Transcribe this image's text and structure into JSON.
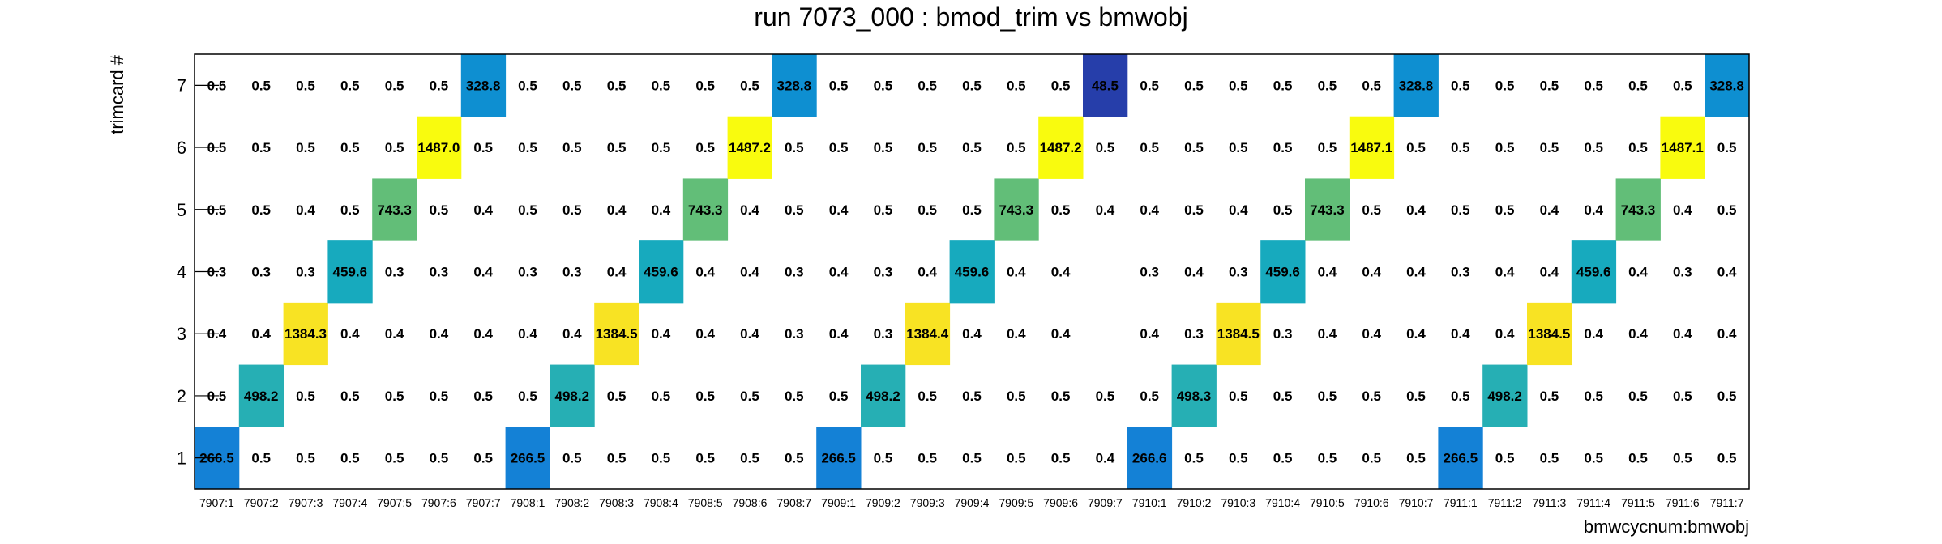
{
  "chart_data": {
    "type": "heatmap",
    "title": "run 7073_000 : bmod_trim vs bmwobj",
    "xlabel": "bmwcycnum:bmwobj",
    "ylabel": "trimcard #",
    "y_categories": [
      "1",
      "2",
      "3",
      "4",
      "5",
      "6",
      "7"
    ],
    "x_categories": [
      "7907:1",
      "7907:2",
      "7907:3",
      "7907:4",
      "7907:5",
      "7907:6",
      "7907:7",
      "7908:1",
      "7908:2",
      "7908:3",
      "7908:4",
      "7908:5",
      "7908:6",
      "7908:7",
      "7909:1",
      "7909:2",
      "7909:3",
      "7909:4",
      "7909:5",
      "7909:6",
      "7909:7",
      "7910:1",
      "7910:2",
      "7910:3",
      "7910:4",
      "7910:5",
      "7910:6",
      "7910:7",
      "7911:1",
      "7911:2",
      "7911:3",
      "7911:4",
      "7911:5",
      "7911:6",
      "7911:7"
    ],
    "values": [
      [
        266.5,
        0.5,
        0.5,
        0.5,
        0.5,
        0.5,
        0.5,
        266.5,
        0.5,
        0.5,
        0.5,
        0.5,
        0.5,
        0.5,
        266.5,
        0.5,
        0.5,
        0.5,
        0.5,
        0.5,
        0.4,
        266.6,
        0.5,
        0.5,
        0.5,
        0.5,
        0.5,
        0.5,
        266.5,
        0.5,
        0.5,
        0.5,
        0.5,
        0.5,
        0.5
      ],
      [
        0.5,
        498.2,
        0.5,
        0.5,
        0.5,
        0.5,
        0.5,
        0.5,
        498.2,
        0.5,
        0.5,
        0.5,
        0.5,
        0.5,
        0.5,
        498.2,
        0.5,
        0.5,
        0.5,
        0.5,
        0.5,
        0.5,
        498.3,
        0.5,
        0.5,
        0.5,
        0.5,
        0.5,
        0.5,
        498.2,
        0.5,
        0.5,
        0.5,
        0.5,
        0.5
      ],
      [
        0.4,
        0.4,
        1384.3,
        0.4,
        0.4,
        0.4,
        0.4,
        0.4,
        0.4,
        1384.5,
        0.4,
        0.4,
        0.4,
        0.3,
        0.4,
        0.3,
        1384.4,
        0.4,
        0.4,
        0.4,
        null,
        0.4,
        0.3,
        1384.5,
        0.3,
        0.4,
        0.4,
        0.4,
        0.4,
        0.4,
        1384.5,
        0.4,
        0.4,
        0.4,
        0.4
      ],
      [
        0.3,
        0.3,
        0.3,
        459.6,
        0.3,
        0.3,
        0.4,
        0.3,
        0.3,
        0.4,
        459.6,
        0.4,
        0.4,
        0.3,
        0.4,
        0.3,
        0.4,
        459.6,
        0.4,
        0.4,
        null,
        0.3,
        0.4,
        0.3,
        459.6,
        0.4,
        0.4,
        0.4,
        0.3,
        0.4,
        0.4,
        459.6,
        0.4,
        0.3,
        0.4
      ],
      [
        0.5,
        0.5,
        0.4,
        0.5,
        743.3,
        0.5,
        0.4,
        0.5,
        0.5,
        0.4,
        0.4,
        743.3,
        0.4,
        0.5,
        0.4,
        0.5,
        0.5,
        0.5,
        743.3,
        0.5,
        0.4,
        0.4,
        0.5,
        0.4,
        0.5,
        743.3,
        0.5,
        0.4,
        0.5,
        0.5,
        0.4,
        0.4,
        743.3,
        0.4,
        0.5
      ],
      [
        0.5,
        0.5,
        0.5,
        0.5,
        0.5,
        1487.0,
        0.5,
        0.5,
        0.5,
        0.5,
        0.5,
        0.5,
        1487.2,
        0.5,
        0.5,
        0.5,
        0.5,
        0.5,
        0.5,
        1487.2,
        0.5,
        0.5,
        0.5,
        0.5,
        0.5,
        0.5,
        1487.1,
        0.5,
        0.5,
        0.5,
        0.5,
        0.5,
        0.5,
        1487.1,
        0.5
      ],
      [
        0.5,
        0.5,
        0.5,
        0.5,
        0.5,
        0.5,
        328.8,
        0.5,
        0.5,
        0.5,
        0.5,
        0.5,
        0.5,
        328.8,
        0.5,
        0.5,
        0.5,
        0.5,
        0.5,
        0.5,
        48.5,
        0.5,
        0.5,
        0.5,
        0.5,
        0.5,
        0.5,
        328.8,
        0.5,
        0.5,
        0.5,
        0.5,
        0.5,
        0.5,
        328.8
      ]
    ],
    "label_format": "one-decimal",
    "grid": false,
    "legend": "none"
  }
}
